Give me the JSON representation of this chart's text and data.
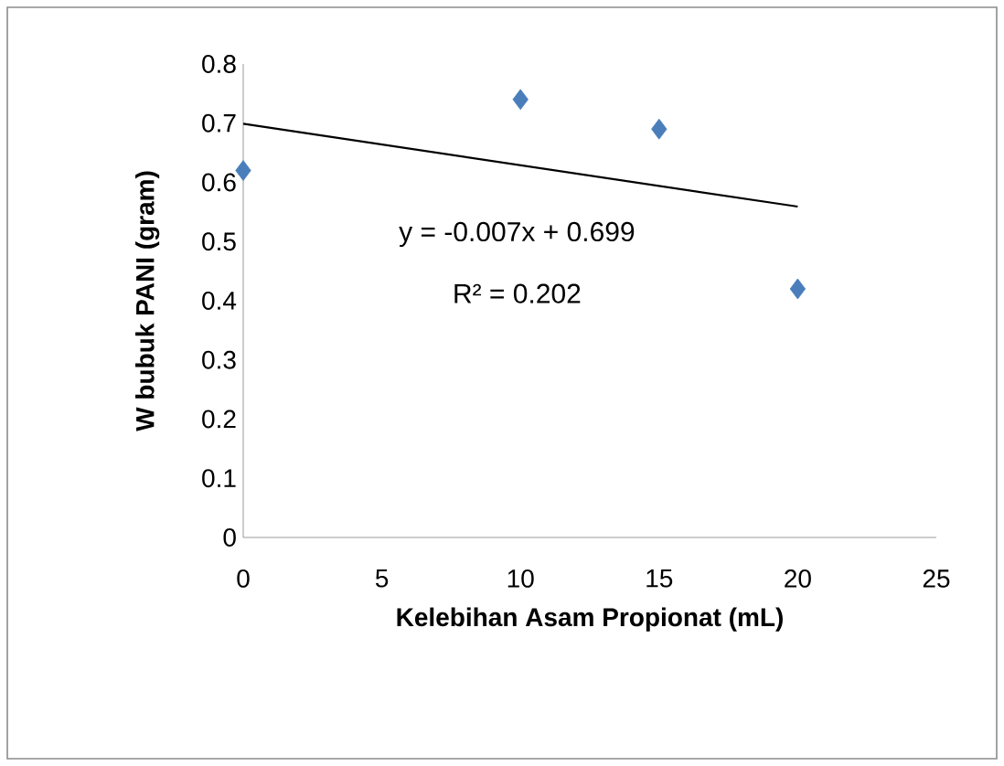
{
  "chart_data": {
    "type": "scatter",
    "xlabel": "Kelebihan Asam Propionat (mL)",
    "ylabel": "W bubuk PANI (gram)",
    "xlim": [
      0,
      25
    ],
    "xticks": [
      0,
      5,
      10,
      15,
      20,
      25
    ],
    "ylim": [
      0,
      0.8
    ],
    "yticks": [
      0,
      0.1,
      0.2,
      0.3,
      0.4,
      0.5,
      0.6,
      0.7,
      0.8
    ],
    "marker": "diamond",
    "series": [
      {
        "color": "#4a7ebb",
        "x": [
          0,
          10,
          15,
          20
        ],
        "values": [
          0.62,
          0.74,
          0.69,
          0.42
        ]
      },
      {
        "type": "line",
        "color": "#000000",
        "marker": "none",
        "line_style": "solid",
        "x": [
          0,
          20
        ],
        "values": [
          0.699,
          0.559
        ]
      }
    ],
    "annotations": [
      "y = -0.007x + 0.699",
      "R² = 0.202"
    ]
  }
}
